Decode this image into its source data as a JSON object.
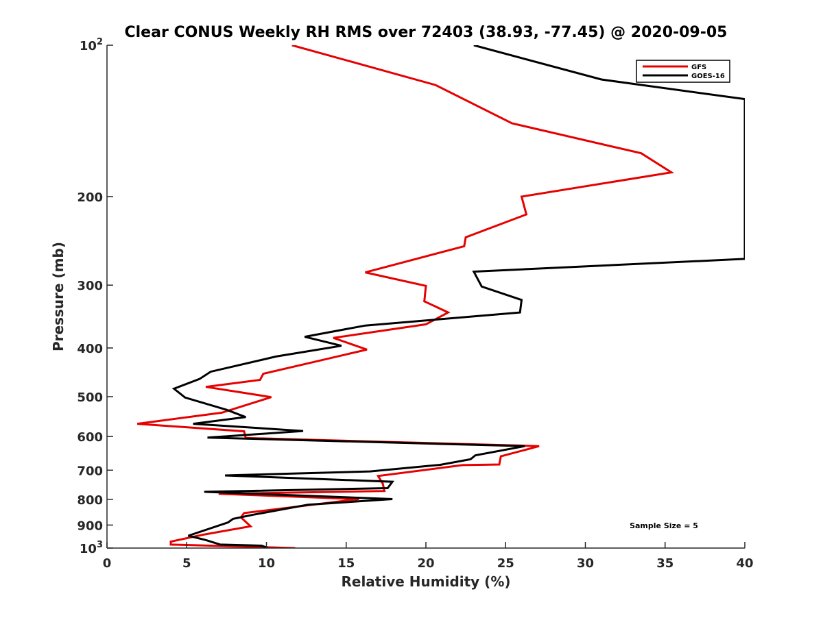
{
  "chart_data": {
    "type": "line",
    "title": "Clear CONUS Weekly RH RMS over 72403 (38.93, -77.45) @ 2020-09-05",
    "xlabel": "Relative Humidity (%)",
    "ylabel": "Pressure (mb)",
    "xlim": [
      0,
      40
    ],
    "ylim": [
      100,
      1000
    ],
    "yscale": "log",
    "y_reversed": true,
    "x_ticks": [
      0,
      5,
      10,
      15,
      20,
      25,
      30,
      35,
      40
    ],
    "y_ticks": [
      {
        "value": 100,
        "base": "10",
        "exp": "2"
      },
      {
        "value": 200,
        "label": "200"
      },
      {
        "value": 300,
        "label": "300"
      },
      {
        "value": 400,
        "label": "400"
      },
      {
        "value": 500,
        "label": "500"
      },
      {
        "value": 600,
        "label": "600"
      },
      {
        "value": 700,
        "label": "700"
      },
      {
        "value": 800,
        "label": "800"
      },
      {
        "value": 900,
        "label": "900"
      },
      {
        "value": 1000,
        "base": "10",
        "exp": "3"
      }
    ],
    "grid": false,
    "legend_position": "top-right",
    "annotation": "Sample Size = 5",
    "series": [
      {
        "name": "GFS",
        "color": "#e60000",
        "points": [
          [
            11.6,
            100
          ],
          [
            20.6,
            120
          ],
          [
            25.4,
            143
          ],
          [
            33.5,
            164
          ],
          [
            35.4,
            179
          ],
          [
            26.0,
            200
          ],
          [
            26.3,
            217
          ],
          [
            22.5,
            241
          ],
          [
            22.4,
            251
          ],
          [
            16.2,
            283
          ],
          [
            20.0,
            301
          ],
          [
            19.9,
            323
          ],
          [
            21.4,
            340
          ],
          [
            20.0,
            359
          ],
          [
            14.2,
            382
          ],
          [
            16.3,
            403
          ],
          [
            9.8,
            450
          ],
          [
            9.6,
            463
          ],
          [
            6.2,
            478
          ],
          [
            10.3,
            501
          ],
          [
            7.2,
            538
          ],
          [
            1.9,
            566
          ],
          [
            8.6,
            586
          ],
          [
            8.7,
            604
          ],
          [
            27.1,
            627
          ],
          [
            24.7,
            657
          ],
          [
            24.6,
            682
          ],
          [
            22.3,
            684
          ],
          [
            17.0,
            719
          ],
          [
            17.3,
            745
          ],
          [
            17.4,
            770
          ],
          [
            7.0,
            780
          ],
          [
            15.8,
            799
          ],
          [
            8.6,
            852
          ],
          [
            8.4,
            869
          ],
          [
            9.0,
            905
          ],
          [
            6.0,
            941
          ],
          [
            4.0,
            971
          ],
          [
            4.0,
            984
          ],
          [
            11.8,
            1000
          ]
        ]
      },
      {
        "name": "GOES-16",
        "color": "#000000",
        "points": [
          [
            23.0,
            100
          ],
          [
            31.0,
            117
          ],
          [
            40.0,
            128
          ],
          [
            40.0,
            266
          ],
          [
            23.0,
            282
          ],
          [
            23.5,
            302
          ],
          [
            26.0,
            321
          ],
          [
            25.9,
            340
          ],
          [
            16.2,
            361
          ],
          [
            12.4,
            380
          ],
          [
            14.7,
            396
          ],
          [
            10.6,
            416
          ],
          [
            6.5,
            446
          ],
          [
            5.8,
            461
          ],
          [
            4.2,
            482
          ],
          [
            4.9,
            502
          ],
          [
            7.5,
            531
          ],
          [
            8.7,
            549
          ],
          [
            5.4,
            566
          ],
          [
            12.3,
            585
          ],
          [
            6.3,
            603
          ],
          [
            26.2,
            627
          ],
          [
            23.1,
            654
          ],
          [
            22.8,
            666
          ],
          [
            20.9,
            683
          ],
          [
            16.5,
            704
          ],
          [
            7.4,
            717
          ],
          [
            17.9,
            738
          ],
          [
            17.6,
            760
          ],
          [
            6.1,
            773
          ],
          [
            17.9,
            799
          ],
          [
            12.6,
            820
          ],
          [
            9.2,
            858
          ],
          [
            7.9,
            875
          ],
          [
            7.6,
            889
          ],
          [
            5.1,
            945
          ],
          [
            6.2,
            964
          ],
          [
            7.1,
            984
          ],
          [
            9.7,
            989
          ],
          [
            10.1,
            1000
          ]
        ]
      }
    ]
  }
}
